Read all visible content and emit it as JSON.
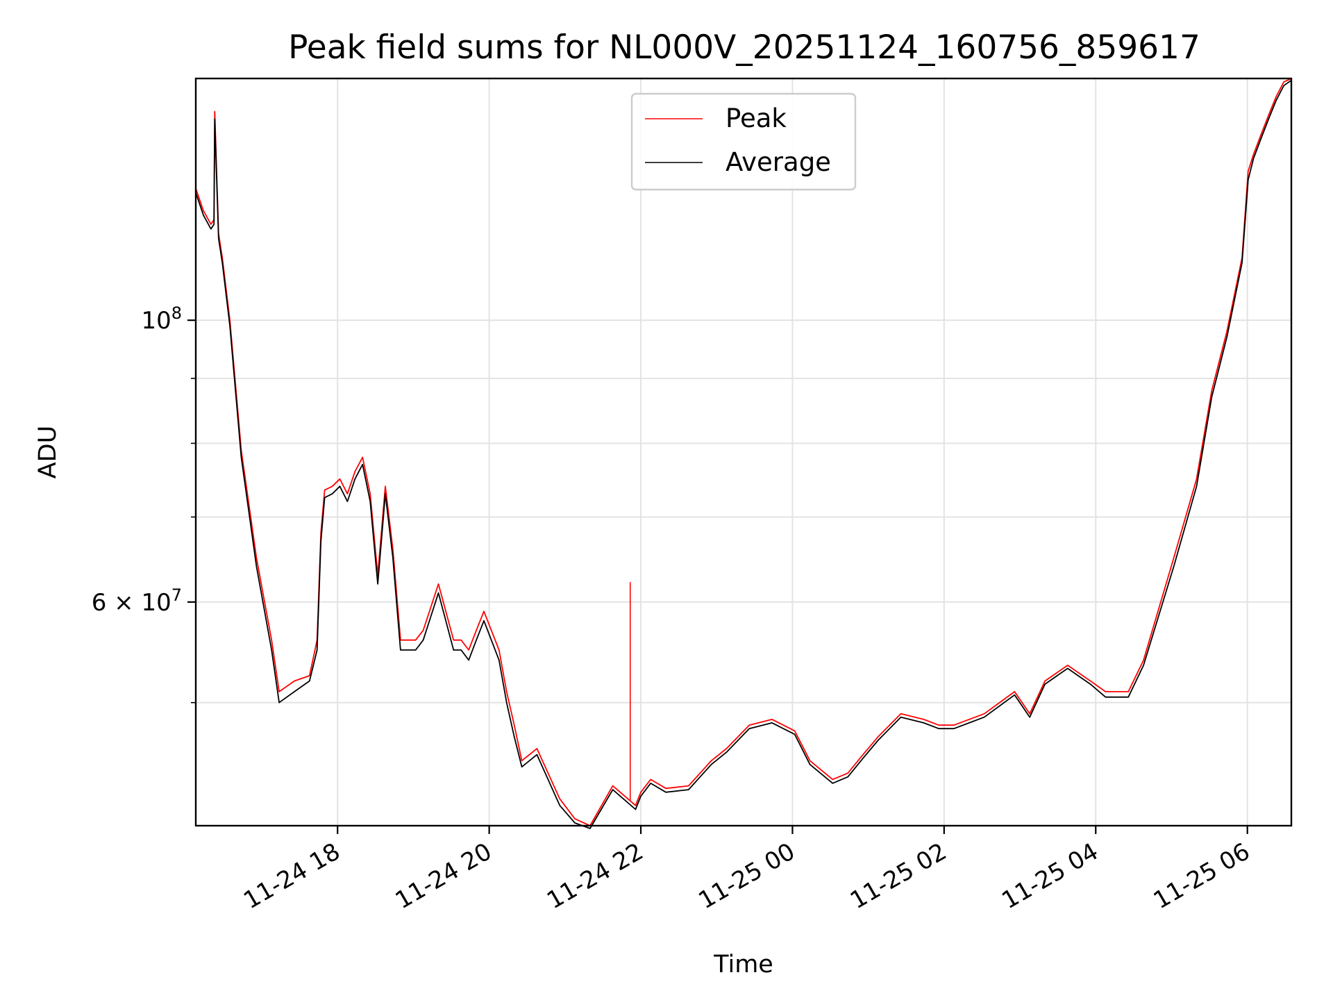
{
  "chart_data": {
    "type": "line",
    "title": "Peak field sums for NL000V_20251124_160756_859617",
    "xlabel": "Time",
    "ylabel": "ADU",
    "yscale": "log",
    "grid": true,
    "legend_position": "top-center",
    "x_unit": "hours since 11-24 16:08",
    "xlim": [
      0,
      14.45
    ],
    "ylim": [
      40000000,
      155000000
    ],
    "x_ticks": [
      {
        "x": 1.87,
        "label": "11-24 18"
      },
      {
        "x": 3.87,
        "label": "11-24 20"
      },
      {
        "x": 5.87,
        "label": "11-24 22"
      },
      {
        "x": 7.87,
        "label": "11-25 00"
      },
      {
        "x": 9.87,
        "label": "11-25 02"
      },
      {
        "x": 11.87,
        "label": "11-25 04"
      },
      {
        "x": 13.87,
        "label": "11-25 06"
      }
    ],
    "y_major_ticks": [
      {
        "y": 100000000,
        "label_base": "10",
        "label_exp": "8"
      },
      {
        "y": 60000000,
        "label_base": "6 × 10",
        "label_exp": "7"
      }
    ],
    "y_minor_ticks": [
      50000000,
      70000000,
      80000000,
      90000000
    ],
    "x": [
      0,
      0.1,
      0.2,
      0.24,
      0.25,
      0.3,
      0.35,
      0.45,
      0.6,
      0.8,
      1.0,
      1.1,
      1.3,
      1.5,
      1.6,
      1.65,
      1.7,
      1.8,
      1.9,
      2.0,
      2.1,
      2.2,
      2.3,
      2.4,
      2.5,
      2.6,
      2.7,
      2.9,
      3.0,
      3.2,
      3.4,
      3.5,
      3.6,
      3.7,
      3.8,
      4.0,
      4.1,
      4.2,
      4.3,
      4.5,
      4.8,
      5.0,
      5.2,
      5.5,
      5.8,
      5.87,
      6.0,
      6.2,
      6.5,
      6.8,
      7.0,
      7.3,
      7.6,
      7.9,
      8.1,
      8.4,
      8.6,
      8.8,
      9.0,
      9.3,
      9.6,
      9.8,
      10.0,
      10.4,
      10.8,
      11.0,
      11.2,
      11.5,
      11.8,
      12.0,
      12.3,
      12.5,
      12.9,
      13.2,
      13.4,
      13.6,
      13.8,
      13.88,
      13.95,
      14.05,
      14.15,
      14.25,
      14.35,
      14.45
    ],
    "series": [
      {
        "name": "Peak",
        "color": "#ff0000",
        "values": [
          127000000,
          122000000,
          119000000,
          120000000,
          146000000,
          117000000,
          112000000,
          100000000,
          79000000,
          65000000,
          56000000,
          51000000,
          52000000,
          52500000,
          56000000,
          68000000,
          73500000,
          74000000,
          75000000,
          73000000,
          76000000,
          78000000,
          73000000,
          63000000,
          74000000,
          66000000,
          56000000,
          56000000,
          57000000,
          62000000,
          56000000,
          56000000,
          55000000,
          57000000,
          59000000,
          55000000,
          51000000,
          48000000,
          45000000,
          46000000,
          42000000,
          40500000,
          40000000,
          43000000,
          41500000,
          42500000,
          43500000,
          42800000,
          43000000,
          45000000,
          46000000,
          48000000,
          48500000,
          47500000,
          45000000,
          43500000,
          44000000,
          45500000,
          47000000,
          49000000,
          48500000,
          48000000,
          48000000,
          49000000,
          51000000,
          49000000,
          52000000,
          53500000,
          52000000,
          51000000,
          51000000,
          54000000,
          65000000,
          75000000,
          88000000,
          98000000,
          112000000,
          131000000,
          135000000,
          140000000,
          145000000,
          150000000,
          154000000,
          155000000
        ]
      },
      {
        "name": "Average",
        "color": "#000000",
        "values": [
          126000000,
          121000000,
          118000000,
          119000000,
          144000000,
          116000000,
          111000000,
          99000000,
          78000000,
          64000000,
          55000000,
          50000000,
          51000000,
          52000000,
          55000000,
          67000000,
          72500000,
          73000000,
          74000000,
          72000000,
          75000000,
          77000000,
          72000000,
          62000000,
          73000000,
          65000000,
          55000000,
          55000000,
          56000000,
          61000000,
          55000000,
          55000000,
          54000000,
          56000000,
          58000000,
          54000000,
          50000000,
          47000000,
          44500000,
          45500000,
          41500000,
          40200000,
          39800000,
          42700000,
          41200000,
          42200000,
          43200000,
          42500000,
          42700000,
          44700000,
          45700000,
          47700000,
          48200000,
          47200000,
          44700000,
          43200000,
          43700000,
          45200000,
          46700000,
          48700000,
          48200000,
          47700000,
          47700000,
          48700000,
          50700000,
          48700000,
          51700000,
          53200000,
          51700000,
          50500000,
          50500000,
          53500000,
          64000000,
          74000000,
          87000000,
          97000000,
          111000000,
          129000000,
          134000000,
          139000000,
          144000000,
          149000000,
          153000000,
          154500000
        ]
      }
    ],
    "spikes": [
      {
        "series": "Peak",
        "x": 5.73,
        "value": 62200000
      }
    ]
  }
}
